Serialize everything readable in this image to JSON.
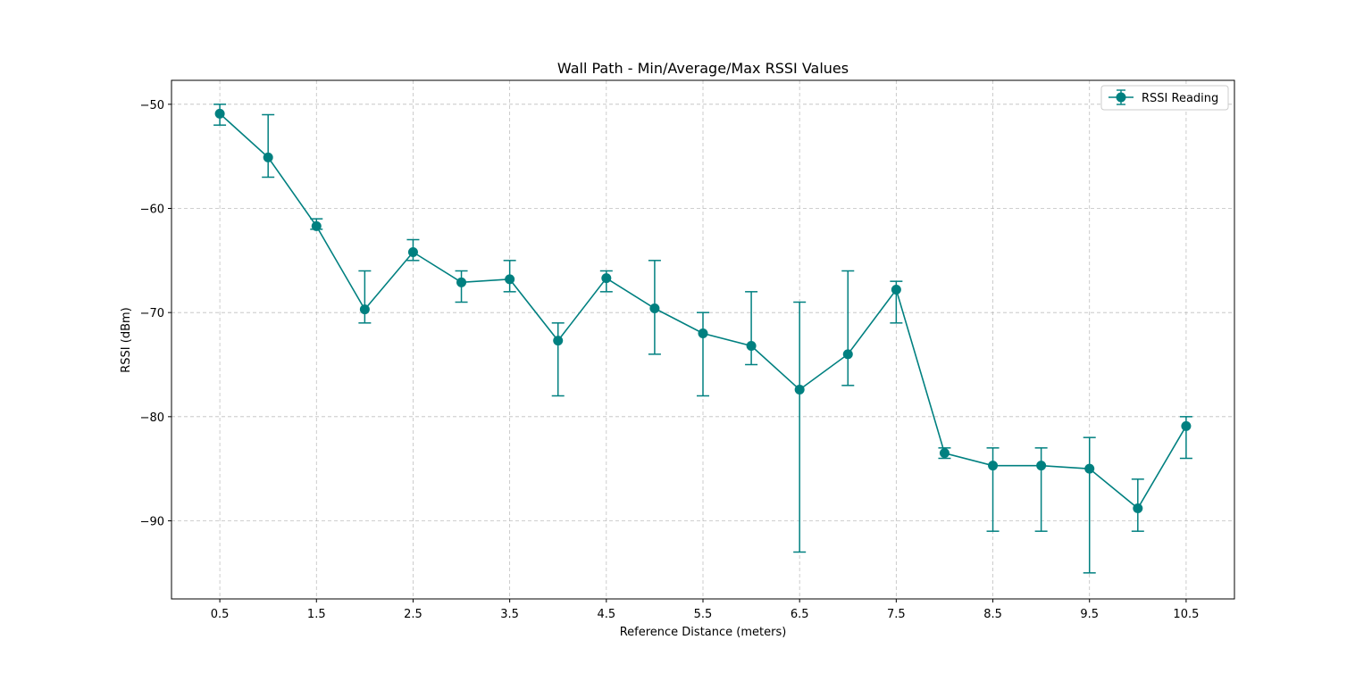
{
  "chart_data": {
    "type": "line",
    "title": "Wall Path - Min/Average/Max RSSI Values",
    "xlabel": "Reference Distance (meters)",
    "ylabel": "RSSI (dBm)",
    "xlim": [
      0,
      11
    ],
    "ylim": [
      -97.5,
      -47.7
    ],
    "x_ticks": [
      0.5,
      1.5,
      2.5,
      3.5,
      4.5,
      5.5,
      6.5,
      7.5,
      8.5,
      9.5,
      10.5
    ],
    "x_tick_labels": [
      "0.5",
      "1.5",
      "2.5",
      "3.5",
      "4.5",
      "5.5",
      "6.5",
      "7.5",
      "8.5",
      "9.5",
      "10.5"
    ],
    "y_ticks": [
      -90,
      -80,
      -70,
      -60,
      -50
    ],
    "y_tick_labels": [
      "−90",
      "−80",
      "−70",
      "−60",
      "−50"
    ],
    "grid": true,
    "legend_position": "top-right",
    "series": [
      {
        "name": "RSSI Reading",
        "color": "#008080",
        "x": [
          0.5,
          1.0,
          1.5,
          2.0,
          2.5,
          3.0,
          3.5,
          4.0,
          4.5,
          5.0,
          5.5,
          6.0,
          6.5,
          7.0,
          7.5,
          8.0,
          8.5,
          9.0,
          9.5,
          10.0,
          10.5
        ],
        "avg": [
          -50.9,
          -55.1,
          -61.7,
          -69.7,
          -64.2,
          -67.1,
          -66.8,
          -72.7,
          -66.7,
          -69.6,
          -72.0,
          -73.2,
          -77.4,
          -74.0,
          -67.8,
          -83.5,
          -84.7,
          -84.7,
          -85.0,
          -88.8,
          -80.9
        ],
        "min": [
          -52,
          -57,
          -62,
          -71,
          -65,
          -69,
          -68,
          -78,
          -68,
          -74,
          -78,
          -75,
          -93,
          -77,
          -71,
          -84,
          -91,
          -91,
          -95,
          -91,
          -84
        ],
        "max": [
          -50,
          -51,
          -61,
          -66,
          -63,
          -66,
          -65,
          -71,
          -66,
          -65,
          -70,
          -68,
          -69,
          -66,
          -67,
          -83,
          -83,
          -83,
          -82,
          -86,
          -80
        ]
      }
    ]
  }
}
